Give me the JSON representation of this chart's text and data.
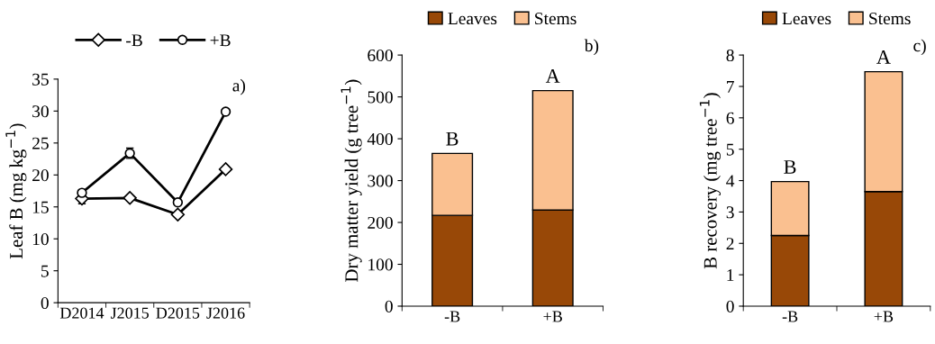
{
  "chart_data": [
    {
      "type": "line",
      "ylabel": "Leaf B (mg kg$^{−1}$)",
      "categories": [
        "D2014",
        "J2015",
        "D2015",
        "J2016"
      ],
      "ylim": [
        0,
        35
      ],
      "yticks": [
        0,
        5,
        10,
        15,
        20,
        25,
        30,
        35
      ],
      "legend": "top",
      "grid": false,
      "line_style": "solid",
      "color": "#000000",
      "series": [
        {
          "name": "-B",
          "marker": "diamond",
          "values": [
            16.3,
            16.4,
            13.8,
            20.9
          ],
          "errors": [
            0.8,
            0.3,
            0.3,
            0.4
          ]
        },
        {
          "name": "+B",
          "marker": "circle",
          "values": [
            17.2,
            23.4,
            15.7,
            29.9
          ],
          "errors": [
            0.4,
            0.8,
            0.3,
            0.3
          ]
        }
      ],
      "annotations": [
        "a)"
      ]
    },
    {
      "type": "bar",
      "stacked": true,
      "ylabel": "Dry matter yield (g tree$^{−1}$)",
      "categories": [
        "-B",
        "+B"
      ],
      "ylim": [
        0,
        600
      ],
      "yticks": [
        0,
        100,
        200,
        300,
        400,
        500,
        600
      ],
      "legend": "top",
      "grid": false,
      "series": [
        {
          "name": "Leaves",
          "color": "#984807",
          "values": [
            217,
            230
          ]
        },
        {
          "name": "Stems",
          "color": "#fac090",
          "values": [
            148,
            285
          ]
        }
      ],
      "annotations": [
        "b)",
        {
          "text": "B",
          "x": "-B",
          "y": 365
        },
        {
          "text": "A",
          "x": "+B",
          "y": 515
        }
      ]
    },
    {
      "type": "bar",
      "stacked": true,
      "ylabel": "B recovery (mg tree$^{−1}$)",
      "categories": [
        "-B",
        "+B"
      ],
      "ylim": [
        0,
        8
      ],
      "yticks": [
        0,
        1,
        2,
        3,
        4,
        5,
        6,
        7,
        8
      ],
      "legend": "top",
      "grid": false,
      "series": [
        {
          "name": "Leaves",
          "color": "#984807",
          "values": [
            2.25,
            3.65
          ]
        },
        {
          "name": "Stems",
          "color": "#fac090",
          "values": [
            1.72,
            3.82
          ]
        }
      ],
      "annotations": [
        "c)",
        {
          "text": "B",
          "x": "-B",
          "y": 3.97
        },
        {
          "text": "A",
          "x": "+B",
          "y": 7.47
        }
      ]
    }
  ]
}
